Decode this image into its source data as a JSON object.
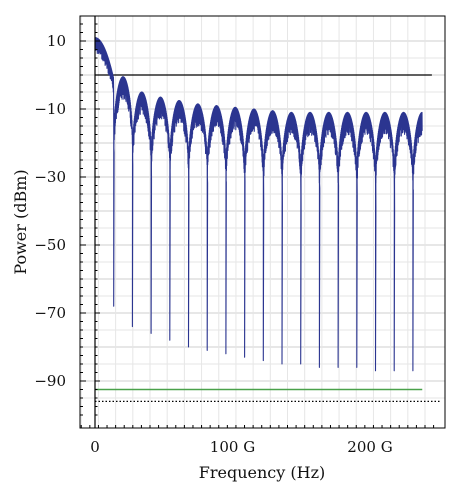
{
  "chart_data": {
    "type": "line",
    "xlabel": "Frequency (Hz)",
    "ylabel": "Power (dBm)",
    "xlim": [
      -12,
      252
    ],
    "ylim": [
      -100,
      17
    ],
    "x_ticks": [
      {
        "value": 0,
        "label": "0"
      },
      {
        "value": 100,
        "label": "100 G"
      },
      {
        "value": 200,
        "label": "200 G"
      }
    ],
    "y_ticks": [
      {
        "value": 10,
        "label": "10"
      },
      {
        "value": -10,
        "label": "−10"
      },
      {
        "value": -30,
        "label": "−30"
      },
      {
        "value": -50,
        "label": "−50"
      },
      {
        "value": -70,
        "label": "−70"
      },
      {
        "value": -90,
        "label": "−90"
      }
    ],
    "grid": true,
    "x_unit_scale_hz": 1000000000,
    "spectrum_envelope": {
      "x_start": 0,
      "x_end": 238,
      "lobe_spacing": 13.6,
      "main_lobe_peak": 11,
      "sidelobe_peaks": [
        -0.5,
        -5,
        -6.5,
        -7.5,
        -8.5,
        -9,
        -9.5,
        -10,
        -10.5,
        -11,
        -11,
        -11,
        -11,
        -11,
        -11,
        -11,
        -11
      ],
      "nulls": [
        {
          "x": 13.6,
          "y": -68
        },
        {
          "x": 27.2,
          "y": -74
        },
        {
          "x": 40.8,
          "y": -76
        },
        {
          "x": 54.4,
          "y": -78
        },
        {
          "x": 68.0,
          "y": -80
        },
        {
          "x": 81.6,
          "y": -81
        },
        {
          "x": 95.2,
          "y": -82
        },
        {
          "x": 108.8,
          "y": -83
        },
        {
          "x": 122.4,
          "y": -84
        },
        {
          "x": 136.0,
          "y": -85
        },
        {
          "x": 149.6,
          "y": -85
        },
        {
          "x": 163.2,
          "y": -86
        },
        {
          "x": 176.8,
          "y": -86
        },
        {
          "x": 190.4,
          "y": -86
        },
        {
          "x": 204.0,
          "y": -87
        },
        {
          "x": 217.6,
          "y": -87
        },
        {
          "x": 231.2,
          "y": -87
        }
      ]
    },
    "series": [
      {
        "type": "line",
        "color": "#2b3590",
        "role": "spectrum"
      },
      {
        "type": "hline",
        "value": -92.5,
        "x_start": 0,
        "x_end": 238,
        "color": "#4aa14a",
        "role": "noise-floor"
      },
      {
        "type": "hline",
        "value": 0,
        "x_start": 0,
        "x_end": 245,
        "color": "#000000",
        "role": "zero-reference"
      },
      {
        "type": "hline",
        "value": -96,
        "x_start": 0,
        "x_end": 252,
        "color": "#000000",
        "style": "dotted",
        "role": "lower-reference"
      }
    ]
  }
}
